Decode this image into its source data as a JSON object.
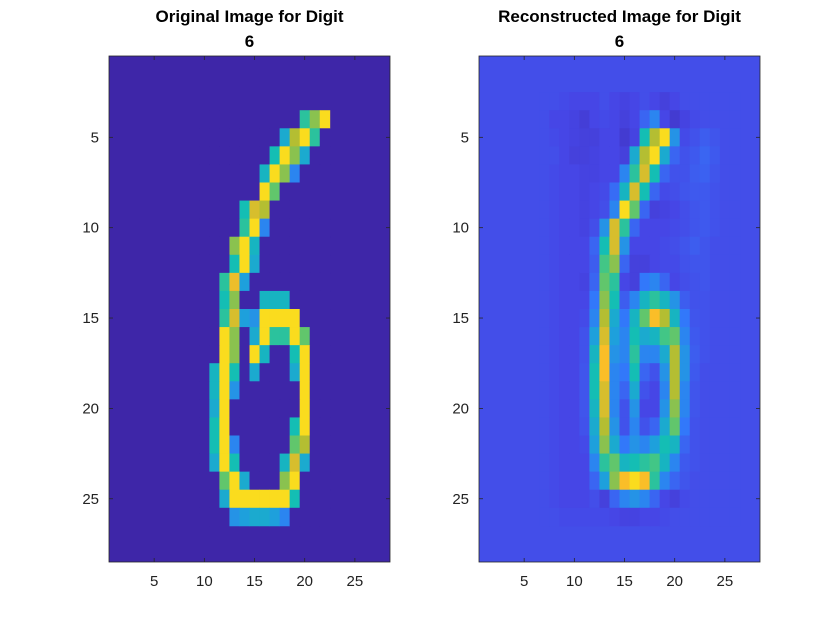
{
  "chart_data": [
    {
      "type": "heatmap",
      "title": [
        "Original Image for Digit",
        "6"
      ],
      "xlabel": "",
      "ylabel": "",
      "xlim": [
        0.5,
        28.5
      ],
      "ylim": [
        0.5,
        28.5
      ],
      "y_direction": "reversed",
      "xticks": [
        5,
        10,
        15,
        20,
        25
      ],
      "yticks": [
        5,
        10,
        15,
        20,
        25
      ],
      "colormap": "parula",
      "clim": [
        0,
        1
      ],
      "background_value": 0.0,
      "matrix_rows_start": 4,
      "matrix_cols_start": 10,
      "matrix": [
        [
          0,
          0,
          0,
          0,
          0,
          0,
          0,
          0,
          0,
          0,
          0.6,
          0.75,
          0.95
        ],
        [
          0,
          0,
          0,
          0,
          0,
          0,
          0,
          0,
          0.45,
          0.8,
          0.95,
          0.6,
          0
        ],
        [
          0,
          0,
          0,
          0,
          0,
          0,
          0,
          0.55,
          0.95,
          0.75,
          0.45,
          0,
          0
        ],
        [
          0,
          0,
          0,
          0,
          0,
          0,
          0.5,
          0.95,
          0.75,
          0.3,
          0,
          0,
          0
        ],
        [
          0,
          0,
          0,
          0,
          0,
          0,
          0.95,
          0.7,
          0,
          0,
          0,
          0,
          0
        ],
        [
          0,
          0,
          0,
          0,
          0.55,
          0.85,
          0.8,
          0,
          0,
          0,
          0,
          0,
          0
        ],
        [
          0,
          0,
          0,
          0,
          0.6,
          0.95,
          0.3,
          0,
          0,
          0,
          0,
          0,
          0
        ],
        [
          0,
          0,
          0,
          0.75,
          0.95,
          0.5,
          0,
          0,
          0,
          0,
          0,
          0,
          0
        ],
        [
          0,
          0,
          0,
          0.55,
          0.95,
          0.45,
          0,
          0,
          0,
          0,
          0,
          0,
          0
        ],
        [
          0,
          0,
          0.6,
          0.88,
          0.4,
          0,
          0,
          0,
          0,
          0,
          0,
          0,
          0
        ],
        [
          0,
          0,
          0.55,
          0.75,
          0,
          0,
          0.5,
          0.5,
          0.5,
          0,
          0,
          0,
          0
        ],
        [
          0,
          0,
          0.6,
          0.85,
          0.4,
          0.35,
          0.95,
          0.95,
          0.95,
          0.95,
          0,
          0,
          0
        ],
        [
          0,
          0,
          0.95,
          0.75,
          0,
          0.45,
          0.95,
          0.6,
          0.6,
          0.95,
          0.7,
          0,
          0
        ],
        [
          0,
          0,
          0.95,
          0.75,
          0,
          0.95,
          0.5,
          0,
          0,
          0.55,
          0.95,
          0,
          0
        ],
        [
          0,
          0.5,
          0.95,
          0.55,
          0,
          0.45,
          0,
          0,
          0,
          0.45,
          0.95,
          0,
          0
        ],
        [
          0,
          0.5,
          0.95,
          0.35,
          0,
          0,
          0,
          0,
          0,
          0,
          0.95,
          0,
          0
        ],
        [
          0,
          0.45,
          0.95,
          0,
          0,
          0,
          0,
          0,
          0,
          0,
          0.95,
          0,
          0
        ],
        [
          0,
          0.55,
          0.95,
          0,
          0,
          0,
          0,
          0,
          0,
          0.55,
          0.95,
          0,
          0
        ],
        [
          0,
          0.55,
          0.95,
          0.3,
          0,
          0,
          0,
          0,
          0,
          0.7,
          0.8,
          0,
          0
        ],
        [
          0,
          0.45,
          0.95,
          0.55,
          0,
          0,
          0,
          0,
          0.5,
          0.85,
          0.45,
          0,
          0
        ],
        [
          0,
          0,
          0.7,
          0.95,
          0.45,
          0,
          0,
          0,
          0.75,
          0.95,
          0,
          0,
          0
        ],
        [
          0,
          0,
          0.45,
          0.95,
          0.95,
          0.95,
          0.95,
          0.95,
          0.95,
          0.55,
          0,
          0,
          0
        ],
        [
          0,
          0,
          0,
          0.35,
          0.4,
          0.45,
          0.45,
          0.4,
          0.3,
          0,
          0,
          0,
          0
        ]
      ]
    },
    {
      "type": "heatmap",
      "title": [
        "Reconstructed Image for Digit",
        "6"
      ],
      "xlabel": "",
      "ylabel": "",
      "xlim": [
        0.5,
        28.5
      ],
      "ylim": [
        0.5,
        28.5
      ],
      "y_direction": "reversed",
      "xticks": [
        5,
        10,
        15,
        20,
        25
      ],
      "yticks": [
        5,
        10,
        15,
        20,
        25
      ],
      "colormap": "parula",
      "clim": [
        0,
        1
      ],
      "background_value": 0.14,
      "matrix_rows_start": 3,
      "matrix_cols_start": 7,
      "matrix": [
        [
          0.14,
          0.14,
          0.13,
          0.12,
          0.12,
          0.12,
          0.14,
          0.12,
          0.11,
          0.12,
          0.14,
          0.12,
          0.1,
          0.12,
          0.14,
          0.14,
          0.14,
          0.14,
          0.14,
          0.14
        ],
        [
          0.14,
          0.12,
          0.12,
          0.11,
          0.09,
          0.12,
          0.13,
          0.12,
          0.1,
          0.12,
          0.2,
          0.3,
          0.12,
          0.08,
          0.11,
          0.13,
          0.14,
          0.14,
          0.14,
          0.14
        ],
        [
          0.14,
          0.13,
          0.12,
          0.11,
          0.1,
          0.1,
          0.12,
          0.12,
          0.08,
          0.11,
          0.55,
          0.8,
          0.95,
          0.35,
          0.13,
          0.15,
          0.18,
          0.16,
          0.14,
          0.14
        ],
        [
          0.14,
          0.14,
          0.12,
          0.1,
          0.1,
          0.11,
          0.12,
          0.12,
          0.1,
          0.45,
          0.8,
          0.95,
          0.45,
          0.2,
          0.15,
          0.17,
          0.2,
          0.17,
          0.14,
          0.14
        ],
        [
          0.14,
          0.13,
          0.12,
          0.12,
          0.11,
          0.11,
          0.12,
          0.12,
          0.3,
          0.6,
          0.85,
          0.55,
          0.2,
          0.15,
          0.15,
          0.18,
          0.19,
          0.16,
          0.14,
          0.14
        ],
        [
          0.14,
          0.13,
          0.12,
          0.12,
          0.11,
          0.12,
          0.13,
          0.22,
          0.5,
          0.85,
          0.55,
          0.2,
          0.13,
          0.14,
          0.16,
          0.17,
          0.17,
          0.15,
          0.14,
          0.14
        ],
        [
          0.14,
          0.13,
          0.12,
          0.12,
          0.11,
          0.12,
          0.14,
          0.3,
          0.95,
          0.7,
          0.2,
          0.1,
          0.11,
          0.12,
          0.14,
          0.16,
          0.17,
          0.15,
          0.14,
          0.14
        ],
        [
          0.14,
          0.13,
          0.12,
          0.12,
          0.11,
          0.14,
          0.35,
          0.85,
          0.6,
          0.2,
          0.12,
          0.12,
          0.12,
          0.13,
          0.14,
          0.16,
          0.17,
          0.15,
          0.14,
          0.14
        ],
        [
          0.14,
          0.13,
          0.12,
          0.12,
          0.12,
          0.2,
          0.55,
          0.85,
          0.35,
          0.12,
          0.12,
          0.12,
          0.13,
          0.14,
          0.16,
          0.18,
          0.16,
          0.14,
          0.14,
          0.14
        ],
        [
          0.14,
          0.13,
          0.12,
          0.12,
          0.12,
          0.18,
          0.65,
          0.75,
          0.2,
          0.1,
          0.1,
          0.12,
          0.13,
          0.13,
          0.15,
          0.16,
          0.16,
          0.14,
          0.14,
          0.14
        ],
        [
          0.14,
          0.13,
          0.12,
          0.12,
          0.11,
          0.2,
          0.7,
          0.6,
          0.12,
          0.1,
          0.25,
          0.3,
          0.2,
          0.12,
          0.14,
          0.15,
          0.16,
          0.14,
          0.14,
          0.14
        ],
        [
          0.14,
          0.13,
          0.12,
          0.12,
          0.12,
          0.25,
          0.75,
          0.55,
          0.18,
          0.3,
          0.5,
          0.6,
          0.5,
          0.35,
          0.18,
          0.15,
          0.15,
          0.14,
          0.14,
          0.14
        ],
        [
          0.14,
          0.13,
          0.12,
          0.12,
          0.13,
          0.3,
          0.8,
          0.45,
          0.25,
          0.5,
          0.7,
          0.9,
          0.8,
          0.5,
          0.25,
          0.16,
          0.15,
          0.14,
          0.14,
          0.14
        ],
        [
          0.14,
          0.13,
          0.12,
          0.12,
          0.15,
          0.4,
          0.85,
          0.4,
          0.3,
          0.55,
          0.45,
          0.5,
          0.65,
          0.7,
          0.3,
          0.17,
          0.15,
          0.14,
          0.14,
          0.14
        ],
        [
          0.14,
          0.13,
          0.12,
          0.12,
          0.15,
          0.5,
          0.9,
          0.35,
          0.3,
          0.6,
          0.3,
          0.3,
          0.45,
          0.8,
          0.35,
          0.18,
          0.15,
          0.14,
          0.14,
          0.14
        ],
        [
          0.14,
          0.13,
          0.12,
          0.12,
          0.16,
          0.55,
          0.9,
          0.3,
          0.25,
          0.55,
          0.2,
          0.15,
          0.35,
          0.8,
          0.35,
          0.17,
          0.14,
          0.14,
          0.14,
          0.14
        ],
        [
          0.14,
          0.13,
          0.12,
          0.12,
          0.16,
          0.55,
          0.85,
          0.3,
          0.2,
          0.45,
          0.15,
          0.12,
          0.3,
          0.8,
          0.3,
          0.16,
          0.14,
          0.14,
          0.14,
          0.14
        ],
        [
          0.14,
          0.13,
          0.12,
          0.12,
          0.16,
          0.5,
          0.85,
          0.3,
          0.15,
          0.35,
          0.12,
          0.12,
          0.35,
          0.75,
          0.3,
          0.16,
          0.14,
          0.14,
          0.14,
          0.14
        ],
        [
          0.14,
          0.13,
          0.12,
          0.12,
          0.15,
          0.45,
          0.8,
          0.35,
          0.15,
          0.3,
          0.15,
          0.2,
          0.45,
          0.7,
          0.25,
          0.15,
          0.14,
          0.14,
          0.14,
          0.14
        ],
        [
          0.14,
          0.13,
          0.12,
          0.12,
          0.13,
          0.4,
          0.75,
          0.45,
          0.25,
          0.35,
          0.3,
          0.4,
          0.55,
          0.5,
          0.2,
          0.15,
          0.14,
          0.14,
          0.14,
          0.14
        ],
        [
          0.14,
          0.13,
          0.12,
          0.12,
          0.12,
          0.3,
          0.6,
          0.7,
          0.5,
          0.55,
          0.6,
          0.65,
          0.5,
          0.3,
          0.17,
          0.15,
          0.14,
          0.14,
          0.14,
          0.14
        ],
        [
          0.14,
          0.13,
          0.12,
          0.12,
          0.12,
          0.2,
          0.4,
          0.75,
          0.9,
          0.95,
          0.9,
          0.6,
          0.3,
          0.2,
          0.16,
          0.14,
          0.14,
          0.14,
          0.14,
          0.14
        ],
        [
          0.14,
          0.13,
          0.12,
          0.12,
          0.12,
          0.14,
          0.1,
          0.2,
          0.3,
          0.35,
          0.3,
          0.2,
          0.12,
          0.1,
          0.13,
          0.14,
          0.14,
          0.14,
          0.14,
          0.14
        ],
        [
          0.14,
          0.14,
          0.13,
          0.13,
          0.13,
          0.13,
          0.13,
          0.12,
          0.11,
          0.11,
          0.12,
          0.12,
          0.13,
          0.14,
          0.14,
          0.14,
          0.14,
          0.14,
          0.14,
          0.14
        ]
      ]
    }
  ]
}
